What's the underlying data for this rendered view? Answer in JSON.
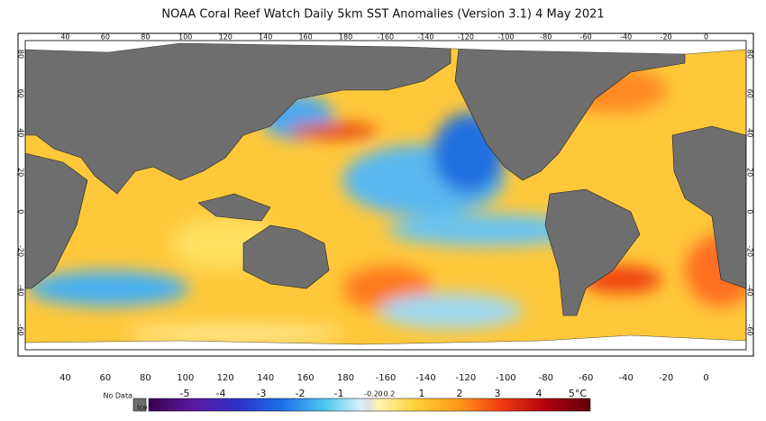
{
  "title": "NOAA Coral Reef Watch Daily 5km SST Anomalies (Version 3.1)   4 May 2021",
  "longitude_labels": [
    "40",
    "60",
    "80",
    "100",
    "120",
    "140",
    "160",
    "180",
    "-160",
    "-140",
    "-120",
    "-100",
    "-80",
    "-60",
    "-40",
    "-20",
    "0"
  ],
  "latitude_labels": [
    "80",
    "60",
    "40",
    "20",
    "0",
    "-20",
    "-40",
    "-60"
  ],
  "colorbar": {
    "no_data": "No Data",
    "ice": "Ice",
    "labels": [
      "-5",
      "-4",
      "-3",
      "-2",
      "-1",
      "-0.2",
      "0",
      "0.2",
      "1",
      "2",
      "3",
      "4",
      "5°C"
    ]
  }
}
